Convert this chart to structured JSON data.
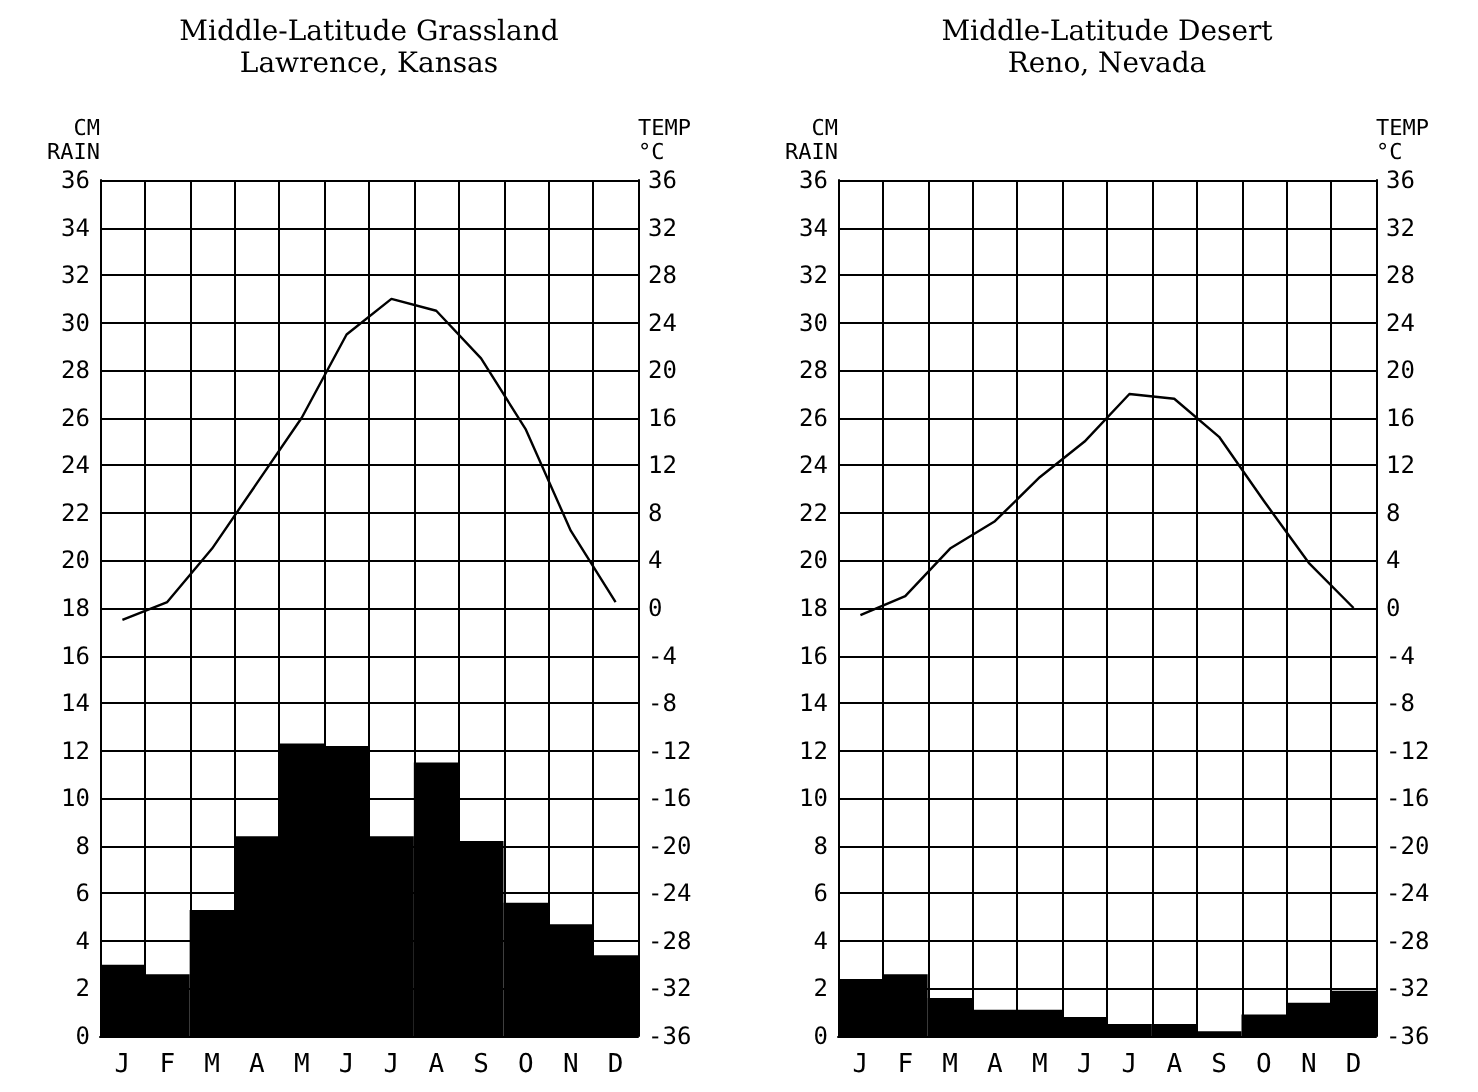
{
  "chart_data": [
    {
      "type": "bar",
      "title": "Middle-Latitude Grassland",
      "subtitle": "Lawrence, Kansas",
      "ylabel": "CM RAIN",
      "y2label": "TEMP °C",
      "categories": [
        "J",
        "F",
        "M",
        "A",
        "M",
        "J",
        "J",
        "A",
        "S",
        "O",
        "N",
        "D"
      ],
      "series": [
        {
          "color": "#000000",
          "values": [
            3.0,
            2.6,
            5.3,
            8.4,
            12.3,
            12.2,
            8.4,
            11.5,
            8.2,
            5.6,
            4.7,
            3.4
          ]
        },
        {
          "type": "line",
          "axis": "y2",
          "color": "#000000",
          "values": [
            -1,
            0.5,
            5,
            10.5,
            16,
            23,
            26,
            25,
            21,
            15,
            6.5,
            0.5
          ]
        }
      ],
      "ylim": [
        0,
        36
      ],
      "yticks": [
        0,
        2,
        4,
        6,
        8,
        10,
        12,
        14,
        16,
        18,
        20,
        22,
        24,
        26,
        28,
        30,
        32,
        34,
        36
      ],
      "y2lim": [
        -36,
        36
      ],
      "y2ticks": [
        -36,
        -32,
        -28,
        -24,
        -20,
        -16,
        -12,
        -8,
        -4,
        0,
        4,
        8,
        12,
        16,
        20,
        24,
        28,
        32,
        36
      ],
      "grid": true,
      "marker": "none",
      "line_style": "solid"
    },
    {
      "type": "bar",
      "title": "Middle-Latitude Desert",
      "subtitle": "Reno, Nevada",
      "ylabel": "CM RAIN",
      "y2label": "TEMP °C",
      "categories": [
        "J",
        "F",
        "M",
        "A",
        "M",
        "J",
        "J",
        "A",
        "S",
        "O",
        "N",
        "D"
      ],
      "series": [
        {
          "color": "#000000",
          "values": [
            2.4,
            2.6,
            1.6,
            1.1,
            1.1,
            0.8,
            0.5,
            0.5,
            0.2,
            0.9,
            1.4,
            1.9
          ]
        },
        {
          "type": "line",
          "axis": "y2",
          "color": "#000000",
          "values": [
            -0.6,
            1,
            5,
            7.3,
            11,
            14,
            18,
            17.6,
            14.4,
            9,
            3.8,
            0
          ]
        }
      ],
      "ylim": [
        0,
        36
      ],
      "yticks": [
        0,
        2,
        4,
        6,
        8,
        10,
        12,
        14,
        16,
        18,
        20,
        22,
        24,
        26,
        28,
        30,
        32,
        34,
        36
      ],
      "y2lim": [
        -36,
        36
      ],
      "y2ticks": [
        -36,
        -32,
        -28,
        -24,
        -20,
        -16,
        -12,
        -8,
        -4,
        0,
        4,
        8,
        12,
        16,
        20,
        24,
        28,
        32,
        36
      ],
      "grid": true,
      "marker": "none",
      "line_style": "solid"
    }
  ]
}
